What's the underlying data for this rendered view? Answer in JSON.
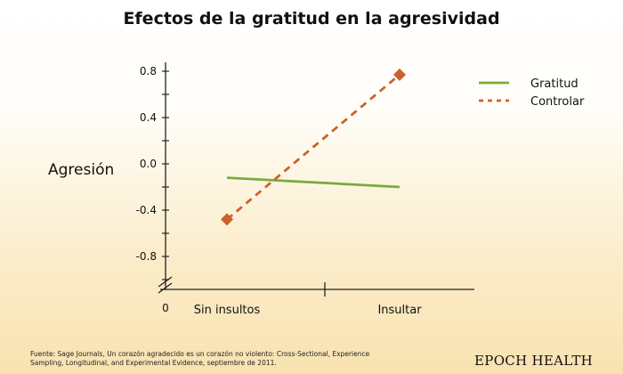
{
  "chart_data": {
    "type": "line",
    "title": "Efectos de la gratitud en la agresividad",
    "ylabel": "Agresión",
    "xlabel": "",
    "categories": [
      "Sin insultos",
      "Insultar"
    ],
    "ylim": [
      -1.0,
      0.8
    ],
    "y_ticks": [
      "0.8",
      "0.4",
      "0.0",
      "-0.4",
      "-0.8"
    ],
    "y_tick_values": [
      0.8,
      0.4,
      0.0,
      -0.4,
      -0.8
    ],
    "y_axis_origin_label": "0",
    "series": [
      {
        "name": "Gratitud",
        "values": [
          -0.12,
          -0.2
        ],
        "color": "#7aab3c",
        "style": "solid",
        "marker": "none"
      },
      {
        "name": "Controlar",
        "values": [
          -0.48,
          0.77
        ],
        "color": "#c9632a",
        "style": "dashed",
        "marker": "diamond"
      }
    ],
    "legend_position": "top-right",
    "grid": false
  },
  "source_text": "Fuente: Sage Journals, Un corazón agradecido es un corazón no violento: Cross-Sectional, Experience Sampling, Longitudinal, and Experimental Evidence, septiembre de 2011.",
  "brand": "EPOCH HEALTH"
}
